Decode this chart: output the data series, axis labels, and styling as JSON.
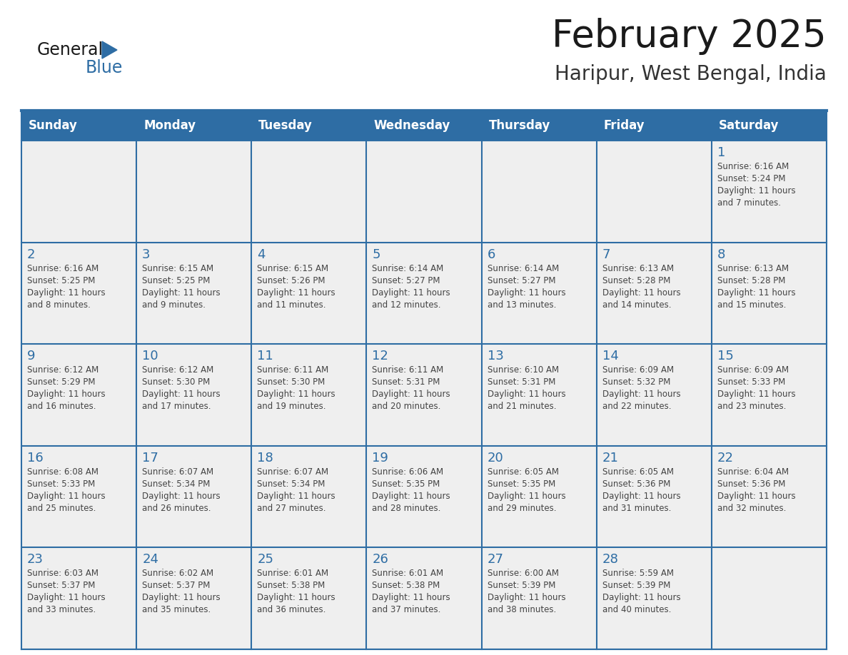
{
  "title": "February 2025",
  "subtitle": "Haripur, West Bengal, India",
  "header_bg": "#2E6DA4",
  "header_text": "#FFFFFF",
  "day_names": [
    "Sunday",
    "Monday",
    "Tuesday",
    "Wednesday",
    "Thursday",
    "Friday",
    "Saturday"
  ],
  "cell_bg": "#EFEFEF",
  "text_color": "#444444",
  "day_num_color": "#2E6DA4",
  "grid_line_color": "#2E6DA4",
  "logo_general_color": "#1A1A1A",
  "logo_blue_color": "#2E6DA4",
  "weeks": [
    [
      {
        "day": null
      },
      {
        "day": null
      },
      {
        "day": null
      },
      {
        "day": null
      },
      {
        "day": null
      },
      {
        "day": null
      },
      {
        "day": 1,
        "sunrise": "6:16 AM",
        "sunset": "5:24 PM",
        "daylight": "11 hours and 7 minutes."
      }
    ],
    [
      {
        "day": 2,
        "sunrise": "6:16 AM",
        "sunset": "5:25 PM",
        "daylight": "11 hours and 8 minutes."
      },
      {
        "day": 3,
        "sunrise": "6:15 AM",
        "sunset": "5:25 PM",
        "daylight": "11 hours and 9 minutes."
      },
      {
        "day": 4,
        "sunrise": "6:15 AM",
        "sunset": "5:26 PM",
        "daylight": "11 hours and 11 minutes."
      },
      {
        "day": 5,
        "sunrise": "6:14 AM",
        "sunset": "5:27 PM",
        "daylight": "11 hours and 12 minutes."
      },
      {
        "day": 6,
        "sunrise": "6:14 AM",
        "sunset": "5:27 PM",
        "daylight": "11 hours and 13 minutes."
      },
      {
        "day": 7,
        "sunrise": "6:13 AM",
        "sunset": "5:28 PM",
        "daylight": "11 hours and 14 minutes."
      },
      {
        "day": 8,
        "sunrise": "6:13 AM",
        "sunset": "5:28 PM",
        "daylight": "11 hours and 15 minutes."
      }
    ],
    [
      {
        "day": 9,
        "sunrise": "6:12 AM",
        "sunset": "5:29 PM",
        "daylight": "11 hours and 16 minutes."
      },
      {
        "day": 10,
        "sunrise": "6:12 AM",
        "sunset": "5:30 PM",
        "daylight": "11 hours and 17 minutes."
      },
      {
        "day": 11,
        "sunrise": "6:11 AM",
        "sunset": "5:30 PM",
        "daylight": "11 hours and 19 minutes."
      },
      {
        "day": 12,
        "sunrise": "6:11 AM",
        "sunset": "5:31 PM",
        "daylight": "11 hours and 20 minutes."
      },
      {
        "day": 13,
        "sunrise": "6:10 AM",
        "sunset": "5:31 PM",
        "daylight": "11 hours and 21 minutes."
      },
      {
        "day": 14,
        "sunrise": "6:09 AM",
        "sunset": "5:32 PM",
        "daylight": "11 hours and 22 minutes."
      },
      {
        "day": 15,
        "sunrise": "6:09 AM",
        "sunset": "5:33 PM",
        "daylight": "11 hours and 23 minutes."
      }
    ],
    [
      {
        "day": 16,
        "sunrise": "6:08 AM",
        "sunset": "5:33 PM",
        "daylight": "11 hours and 25 minutes."
      },
      {
        "day": 17,
        "sunrise": "6:07 AM",
        "sunset": "5:34 PM",
        "daylight": "11 hours and 26 minutes."
      },
      {
        "day": 18,
        "sunrise": "6:07 AM",
        "sunset": "5:34 PM",
        "daylight": "11 hours and 27 minutes."
      },
      {
        "day": 19,
        "sunrise": "6:06 AM",
        "sunset": "5:35 PM",
        "daylight": "11 hours and 28 minutes."
      },
      {
        "day": 20,
        "sunrise": "6:05 AM",
        "sunset": "5:35 PM",
        "daylight": "11 hours and 29 minutes."
      },
      {
        "day": 21,
        "sunrise": "6:05 AM",
        "sunset": "5:36 PM",
        "daylight": "11 hours and 31 minutes."
      },
      {
        "day": 22,
        "sunrise": "6:04 AM",
        "sunset": "5:36 PM",
        "daylight": "11 hours and 32 minutes."
      }
    ],
    [
      {
        "day": 23,
        "sunrise": "6:03 AM",
        "sunset": "5:37 PM",
        "daylight": "11 hours and 33 minutes."
      },
      {
        "day": 24,
        "sunrise": "6:02 AM",
        "sunset": "5:37 PM",
        "daylight": "11 hours and 35 minutes."
      },
      {
        "day": 25,
        "sunrise": "6:01 AM",
        "sunset": "5:38 PM",
        "daylight": "11 hours and 36 minutes."
      },
      {
        "day": 26,
        "sunrise": "6:01 AM",
        "sunset": "5:38 PM",
        "daylight": "11 hours and 37 minutes."
      },
      {
        "day": 27,
        "sunrise": "6:00 AM",
        "sunset": "5:39 PM",
        "daylight": "11 hours and 38 minutes."
      },
      {
        "day": 28,
        "sunrise": "5:59 AM",
        "sunset": "5:39 PM",
        "daylight": "11 hours and 40 minutes."
      },
      {
        "day": null
      }
    ]
  ]
}
